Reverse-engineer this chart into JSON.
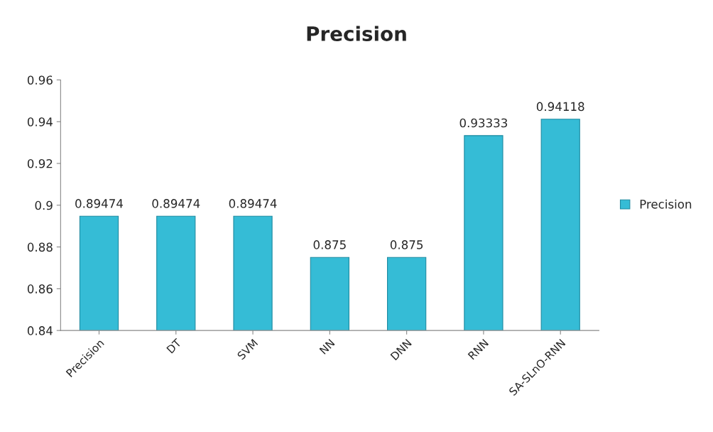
{
  "chart_data": {
    "type": "bar",
    "title": "Precision",
    "categories": [
      "Precision",
      "DT",
      "SVM",
      "NN",
      "DNN",
      "RNN",
      "SA-SLnO-RNN"
    ],
    "series": [
      {
        "name": "Precision",
        "color": "#35bcd6",
        "values": [
          0.89474,
          0.89474,
          0.89474,
          0.875,
          0.875,
          0.93333,
          0.94118
        ]
      }
    ],
    "ylim": [
      0.84,
      0.96
    ],
    "yticks": [
      0.84,
      0.86,
      0.88,
      0.9,
      0.92,
      0.94,
      0.96
    ],
    "data_labels": true,
    "legend": "right",
    "grid": false
  }
}
